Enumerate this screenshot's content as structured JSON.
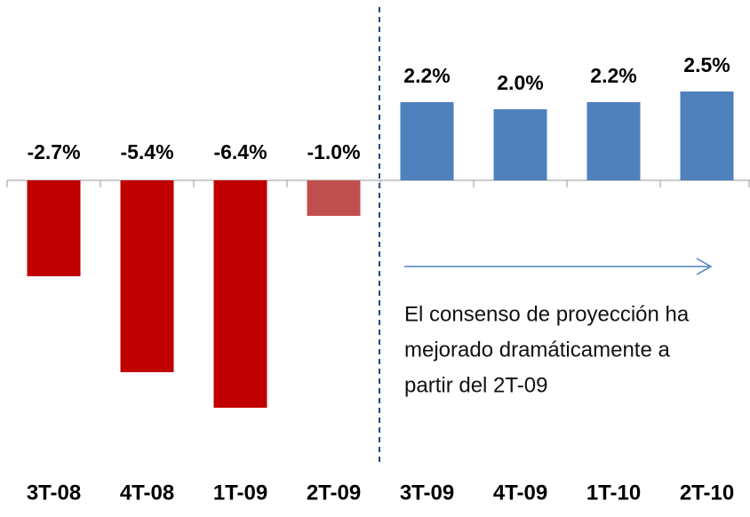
{
  "chart_data": {
    "type": "bar",
    "categories": [
      "3T-08",
      "4T-08",
      "1T-09",
      "2T-09",
      "3T-09",
      "4T-09",
      "1T-10",
      "2T-10"
    ],
    "values": [
      -2.7,
      -5.4,
      -6.4,
      -1.0,
      2.2,
      2.0,
      2.2,
      2.5
    ],
    "value_labels": [
      "-2.7%",
      "-5.4%",
      "-6.4%",
      "-1.0%",
      "2.2%",
      "2.0%",
      "2.2%",
      "2.5%"
    ],
    "colors": [
      "#c00000",
      "#c00000",
      "#c00000",
      "#c0504d",
      "#4f81bd",
      "#4f81bd",
      "#4f81bd",
      "#4f81bd"
    ],
    "ylim": [
      -8,
      5
    ],
    "annotation": [
      "El consenso de proyección ha",
      "mejorado dramáticamente a",
      "partir del 2T-09"
    ]
  }
}
